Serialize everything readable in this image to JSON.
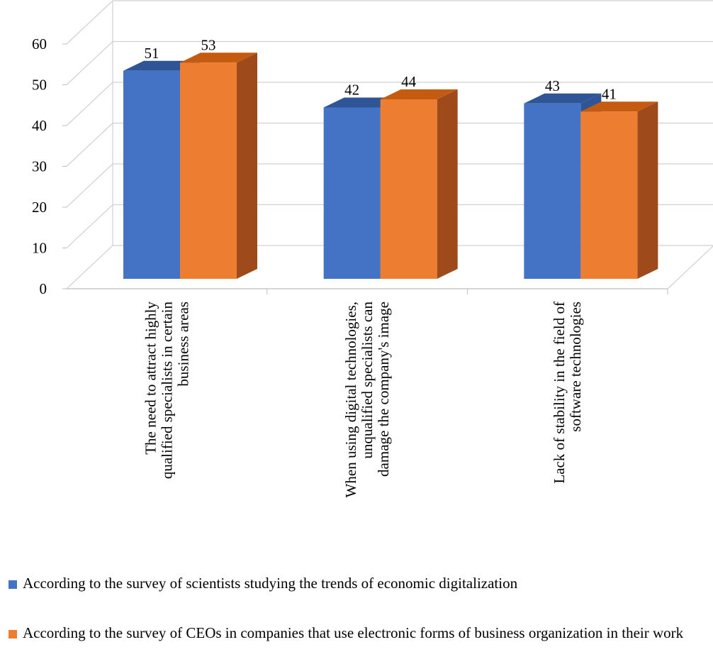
{
  "chart_data": {
    "type": "bar",
    "title": "",
    "xlabel": "",
    "ylabel": "",
    "ylim": [
      0,
      60
    ],
    "yticks": [
      0,
      10,
      20,
      30,
      40,
      50,
      60
    ],
    "grid": true,
    "three_d": true,
    "legend_position": "bottom",
    "categories": [
      [
        "The need to attract highly",
        "qualified specialists in certain",
        "business areas"
      ],
      [
        "When using digital technologies,",
        "unqualified specialists can",
        "damage the company's image"
      ],
      [
        "Lack of stability in the field of",
        "software technologies"
      ]
    ],
    "series": [
      {
        "name": "According to the survey of scientists studying the trends of economic digitalization",
        "values": [
          51,
          42,
          43
        ],
        "color": "#4472C4",
        "side_color": "#2F5597",
        "top_color": "#2F5597"
      },
      {
        "name": "According to the survey of CEOs in companies that use electronic forms of business organization in their work",
        "values": [
          53,
          44,
          41
        ],
        "color": "#ED7D31",
        "side_color": "#9E4A1B",
        "top_color": "#C55A11"
      }
    ]
  }
}
